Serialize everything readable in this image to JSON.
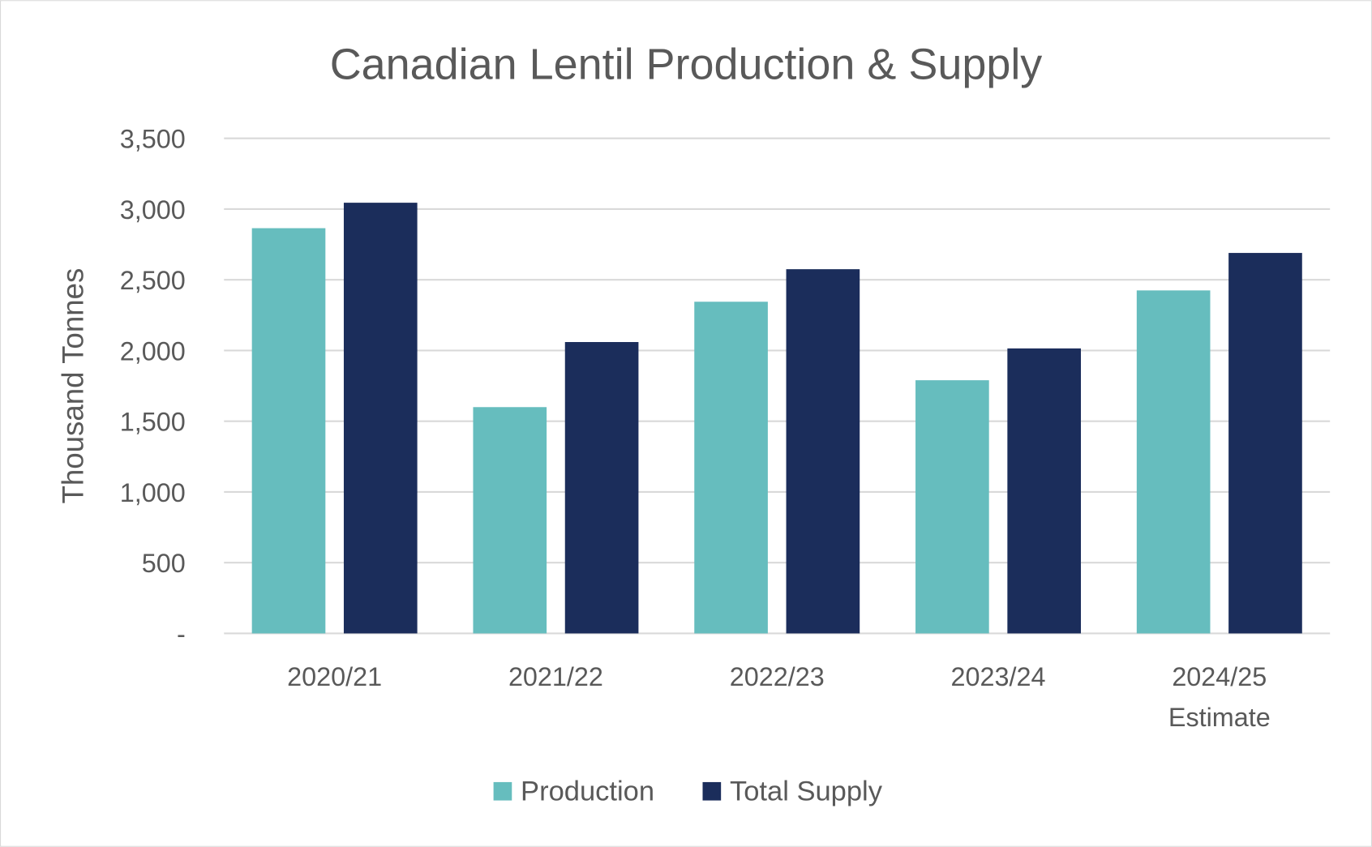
{
  "chart_data": {
    "type": "bar",
    "title": "Canadian Lentil Production & Supply",
    "xlabel": "",
    "ylabel": "Thousand Tonnes",
    "ylim": [
      0,
      3500
    ],
    "yticks": [
      0,
      500,
      1000,
      1500,
      2000,
      2500,
      3000,
      3500
    ],
    "ytick_labels": [
      "-",
      "500",
      "1,000",
      "1,500",
      "2,000",
      "2,500",
      "3,000",
      "3,500"
    ],
    "categories": [
      [
        "2020/21"
      ],
      [
        "2021/22"
      ],
      [
        "2022/23"
      ],
      [
        "2023/24"
      ],
      [
        "2024/25",
        "Estimate"
      ]
    ],
    "series": [
      {
        "name": "Production",
        "color": "#66BDBE",
        "values": [
          2865,
          1600,
          2345,
          1790,
          2425
        ]
      },
      {
        "name": "Total Supply",
        "color": "#1B2D5B",
        "values": [
          3045,
          2060,
          2575,
          2015,
          2690
        ]
      }
    ],
    "grid": true,
    "legend": "bottom"
  }
}
